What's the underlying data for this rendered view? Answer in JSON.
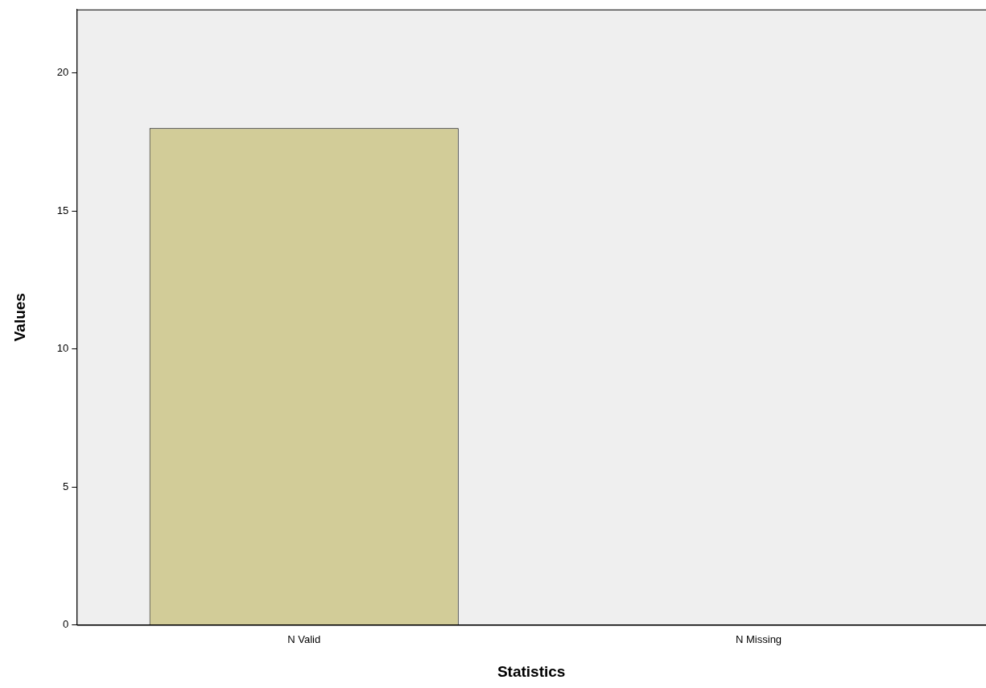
{
  "chart_data": {
    "type": "bar",
    "xlabel": "Statistics",
    "ylabel": "Values",
    "categories": [
      "N Valid",
      "N Missing"
    ],
    "values": [
      18,
      0
    ],
    "color": "#d2cc98",
    "ylim": [
      0,
      22.3
    ],
    "yticks": [
      0,
      5,
      10,
      15,
      20
    ],
    "grid": false,
    "legend": false
  }
}
